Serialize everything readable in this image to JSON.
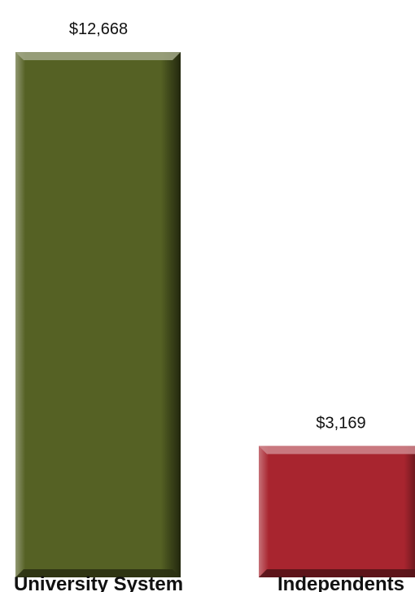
{
  "chart_data": {
    "type": "bar",
    "categories": [
      "University System",
      "Independents"
    ],
    "values": [
      12668,
      3169
    ],
    "value_labels": [
      "$12,668",
      "$3,169"
    ],
    "colors": [
      "#556124",
      "#a8252f"
    ],
    "ylim": [
      0,
      12668
    ],
    "grid": false,
    "legend": "none"
  }
}
